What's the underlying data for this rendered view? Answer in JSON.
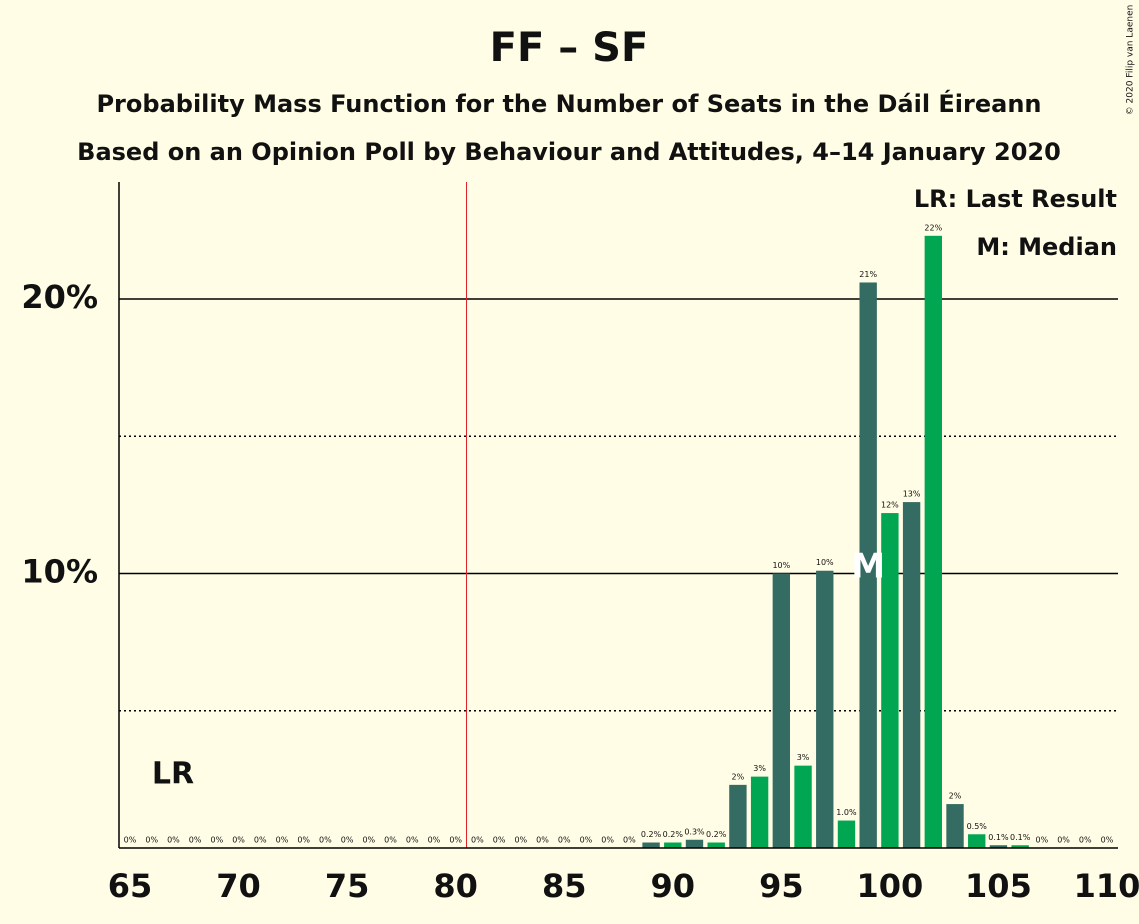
{
  "chart_data": {
    "type": "bar",
    "title": "FF – SF",
    "subtitle": "Probability Mass Function for the Number of Seats in the Dáil Éireann",
    "subtitle2": "Based on an Opinion Poll by Behaviour and Attitudes, 4–14 January 2020",
    "copyright": "© 2020 Filip van Laenen",
    "legend": [
      "LR: Last Result",
      "M: Median"
    ],
    "last_result_label": "LR",
    "median_label": "M",
    "last_result_line": 80.5,
    "median": 99,
    "x": [
      65,
      66,
      67,
      68,
      69,
      70,
      71,
      72,
      73,
      74,
      75,
      76,
      77,
      78,
      79,
      80,
      81,
      82,
      83,
      84,
      85,
      86,
      87,
      88,
      89,
      90,
      91,
      92,
      93,
      94,
      95,
      96,
      97,
      98,
      99,
      100,
      101,
      102,
      103,
      104,
      105,
      106,
      107,
      108,
      109,
      110
    ],
    "values": [
      0,
      0,
      0,
      0,
      0,
      0,
      0,
      0,
      0,
      0,
      0,
      0,
      0,
      0,
      0,
      0,
      0,
      0,
      0,
      0,
      0,
      0,
      0,
      0,
      0.2,
      0.2,
      0.3,
      0.2,
      2.3,
      2.6,
      10.0,
      3.0,
      10.1,
      1.0,
      20.6,
      12.2,
      12.6,
      22.3,
      1.6,
      0.5,
      0.1,
      0.1,
      0,
      0,
      0,
      0
    ],
    "value_labels": [
      "0%",
      "0%",
      "0%",
      "0%",
      "0%",
      "0%",
      "0%",
      "0%",
      "0%",
      "0%",
      "0%",
      "0%",
      "0%",
      "0%",
      "0%",
      "0%",
      "0%",
      "0%",
      "0%",
      "0%",
      "0%",
      "0%",
      "0%",
      "0%",
      "0.2%",
      "0.2%",
      "0.3%",
      "0.2%",
      "2%",
      "3%",
      "10%",
      "3%",
      "10%",
      "1.0%",
      "21%",
      "12%",
      "13%",
      "22%",
      "2%",
      "0.5%",
      "0.1%",
      "0.1%",
      "0%",
      "0%",
      "0%",
      "0%"
    ],
    "colors": {
      "odd": "#346b63",
      "even": "#00a651"
    },
    "xlim": [
      65,
      110
    ],
    "xticks": [
      65,
      70,
      75,
      80,
      85,
      90,
      95,
      100,
      105,
      110
    ],
    "ylim": [
      0,
      24.26
    ],
    "yticks": [
      {
        "value": 10,
        "label": "10%"
      },
      {
        "value": 20,
        "label": "20%"
      }
    ],
    "minor_yticks": [
      5,
      15
    ]
  }
}
